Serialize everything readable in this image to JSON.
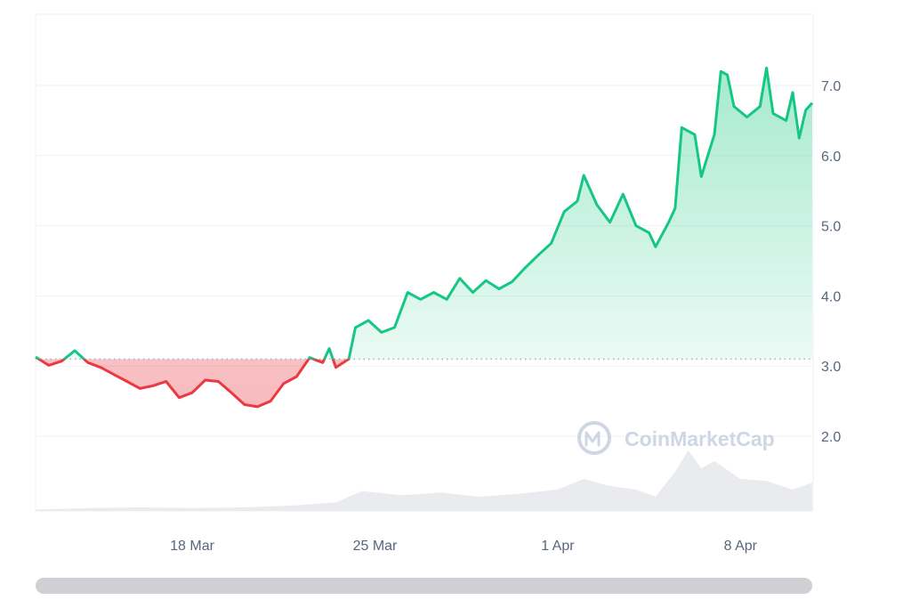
{
  "chart_data": {
    "type": "line",
    "x_tick_labels": [
      "18 Mar",
      "25 Mar",
      "1 Apr",
      "8 Apr"
    ],
    "y_tick_labels": [
      "2.0",
      "3.0",
      "4.0",
      "5.0",
      "6.0",
      "7.0"
    ],
    "ylim": [
      1.0,
      8.0
    ],
    "xlim": [
      "2024-03-12",
      "2024-04-10"
    ],
    "grid": true,
    "baseline": 3.1,
    "colors": {
      "up": "#16c784",
      "down": "#ea3943",
      "volume": "#e9ebee",
      "grid": "#eff2f5"
    },
    "series": [
      {
        "values": [
          [
            "2024-03-12 00:00",
            3.13
          ],
          [
            "2024-03-12 12:00",
            3.01
          ],
          [
            "2024-03-13 00:00",
            3.07
          ],
          [
            "2024-03-13 12:00",
            3.22
          ],
          [
            "2024-03-14 00:00",
            3.05
          ],
          [
            "2024-03-14 12:00",
            2.98
          ],
          [
            "2024-03-15 00:00",
            2.88
          ],
          [
            "2024-03-15 12:00",
            2.78
          ],
          [
            "2024-03-16 00:00",
            2.68
          ],
          [
            "2024-03-16 12:00",
            2.72
          ],
          [
            "2024-03-17 00:00",
            2.78
          ],
          [
            "2024-03-17 12:00",
            2.55
          ],
          [
            "2024-03-18 00:00",
            2.62
          ],
          [
            "2024-03-18 12:00",
            2.8
          ],
          [
            "2024-03-19 00:00",
            2.78
          ],
          [
            "2024-03-19 12:00",
            2.62
          ],
          [
            "2024-03-20 00:00",
            2.45
          ],
          [
            "2024-03-20 12:00",
            2.42
          ],
          [
            "2024-03-21 00:00",
            2.5
          ],
          [
            "2024-03-21 12:00",
            2.75
          ],
          [
            "2024-03-22 00:00",
            2.85
          ],
          [
            "2024-03-22 12:00",
            3.12
          ],
          [
            "2024-03-23 00:00",
            3.05
          ],
          [
            "2024-03-23 06:00",
            3.25
          ],
          [
            "2024-03-23 12:00",
            2.98
          ],
          [
            "2024-03-24 00:00",
            3.1
          ],
          [
            "2024-03-24 06:00",
            3.55
          ],
          [
            "2024-03-24 18:00",
            3.65
          ],
          [
            "2024-03-25 06:00",
            3.48
          ],
          [
            "2024-03-25 18:00",
            3.55
          ],
          [
            "2024-03-26 06:00",
            4.05
          ],
          [
            "2024-03-26 18:00",
            3.95
          ],
          [
            "2024-03-27 06:00",
            4.05
          ],
          [
            "2024-03-27 18:00",
            3.95
          ],
          [
            "2024-03-28 06:00",
            4.25
          ],
          [
            "2024-03-28 18:00",
            4.05
          ],
          [
            "2024-03-29 06:00",
            4.22
          ],
          [
            "2024-03-29 18:00",
            4.1
          ],
          [
            "2024-03-30 06:00",
            4.2
          ],
          [
            "2024-03-30 18:00",
            4.4
          ],
          [
            "2024-03-31 06:00",
            4.58
          ],
          [
            "2024-03-31 18:00",
            4.75
          ],
          [
            "2024-04-01 06:00",
            5.2
          ],
          [
            "2024-04-01 18:00",
            5.35
          ],
          [
            "2024-04-02 00:00",
            5.72
          ],
          [
            "2024-04-02 12:00",
            5.3
          ],
          [
            "2024-04-03 00:00",
            5.05
          ],
          [
            "2024-04-03 12:00",
            5.45
          ],
          [
            "2024-04-04 00:00",
            5.0
          ],
          [
            "2024-04-04 12:00",
            4.9
          ],
          [
            "2024-04-04 18:00",
            4.7
          ],
          [
            "2024-04-05 06:00",
            5.05
          ],
          [
            "2024-04-05 12:00",
            5.25
          ],
          [
            "2024-04-05 18:00",
            6.4
          ],
          [
            "2024-04-06 06:00",
            6.3
          ],
          [
            "2024-04-06 12:00",
            5.7
          ],
          [
            "2024-04-06 18:00",
            6.0
          ],
          [
            "2024-04-07 00:00",
            6.3
          ],
          [
            "2024-04-07 06:00",
            7.2
          ],
          [
            "2024-04-07 12:00",
            7.15
          ],
          [
            "2024-04-07 18:00",
            6.7
          ],
          [
            "2024-04-08 06:00",
            6.55
          ],
          [
            "2024-04-08 18:00",
            6.7
          ],
          [
            "2024-04-09 00:00",
            7.25
          ],
          [
            "2024-04-09 06:00",
            6.6
          ],
          [
            "2024-04-09 18:00",
            6.5
          ],
          [
            "2024-04-10 00:00",
            6.9
          ],
          [
            "2024-04-10 06:00",
            6.25
          ],
          [
            "2024-04-10 12:00",
            6.65
          ],
          [
            "2024-04-10 18:00",
            6.75
          ]
        ]
      }
    ],
    "volume": [
      [
        "2024-03-12 00:00",
        0.02
      ],
      [
        "2024-03-14 00:00",
        0.04
      ],
      [
        "2024-03-16 00:00",
        0.05
      ],
      [
        "2024-03-18 00:00",
        0.04
      ],
      [
        "2024-03-20 00:00",
        0.05
      ],
      [
        "2024-03-22 00:00",
        0.08
      ],
      [
        "2024-03-23 12:00",
        0.12
      ],
      [
        "2024-03-24 12:00",
        0.28
      ],
      [
        "2024-03-26 00:00",
        0.22
      ],
      [
        "2024-03-27 12:00",
        0.26
      ],
      [
        "2024-03-29 00:00",
        0.2
      ],
      [
        "2024-03-30 12:00",
        0.24
      ],
      [
        "2024-04-01 00:00",
        0.3
      ],
      [
        "2024-04-02 00:00",
        0.45
      ],
      [
        "2024-04-03 00:00",
        0.35
      ],
      [
        "2024-04-04 00:00",
        0.3
      ],
      [
        "2024-04-04 18:00",
        0.2
      ],
      [
        "2024-04-05 12:00",
        0.55
      ],
      [
        "2024-04-06 00:00",
        0.85
      ],
      [
        "2024-04-06 12:00",
        0.6
      ],
      [
        "2024-04-07 00:00",
        0.7
      ],
      [
        "2024-04-08 00:00",
        0.45
      ],
      [
        "2024-04-09 00:00",
        0.42
      ],
      [
        "2024-04-10 00:00",
        0.3
      ],
      [
        "2024-04-10 18:00",
        0.4
      ]
    ],
    "watermark": "CoinMarketCap"
  }
}
